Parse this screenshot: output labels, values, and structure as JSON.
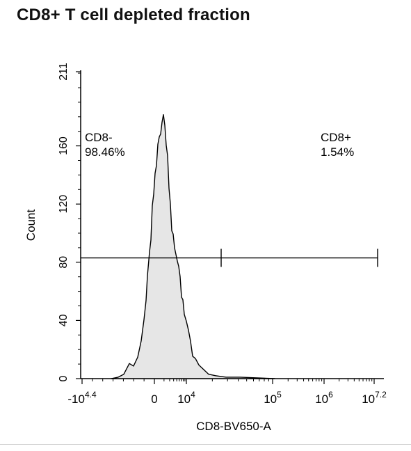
{
  "title": "CD8+ T cell depleted fraction",
  "chart_data": {
    "type": "histogram",
    "xlabel": "CD8-BV650-A",
    "ylabel": "Count",
    "x_scale": "biexponential",
    "y_range": [
      0,
      211
    ],
    "y_ticks": [
      0,
      40,
      80,
      120,
      160,
      211
    ],
    "x_ticks": [
      {
        "base": "-10",
        "exp": "4.4"
      },
      {
        "base": "0",
        "exp": ""
      },
      {
        "base": "10",
        "exp": "4"
      },
      {
        "base": "10",
        "exp": "5"
      },
      {
        "base": "10",
        "exp": "6"
      },
      {
        "base": "10",
        "exp": "7.2"
      }
    ],
    "gates": [
      {
        "name": "CD8-",
        "percent": "98.46%"
      },
      {
        "name": "CD8+",
        "percent": "1.54%"
      }
    ],
    "gate_y_level": 83,
    "fill_color": "#e6e6e6",
    "line_color": "#000000"
  }
}
